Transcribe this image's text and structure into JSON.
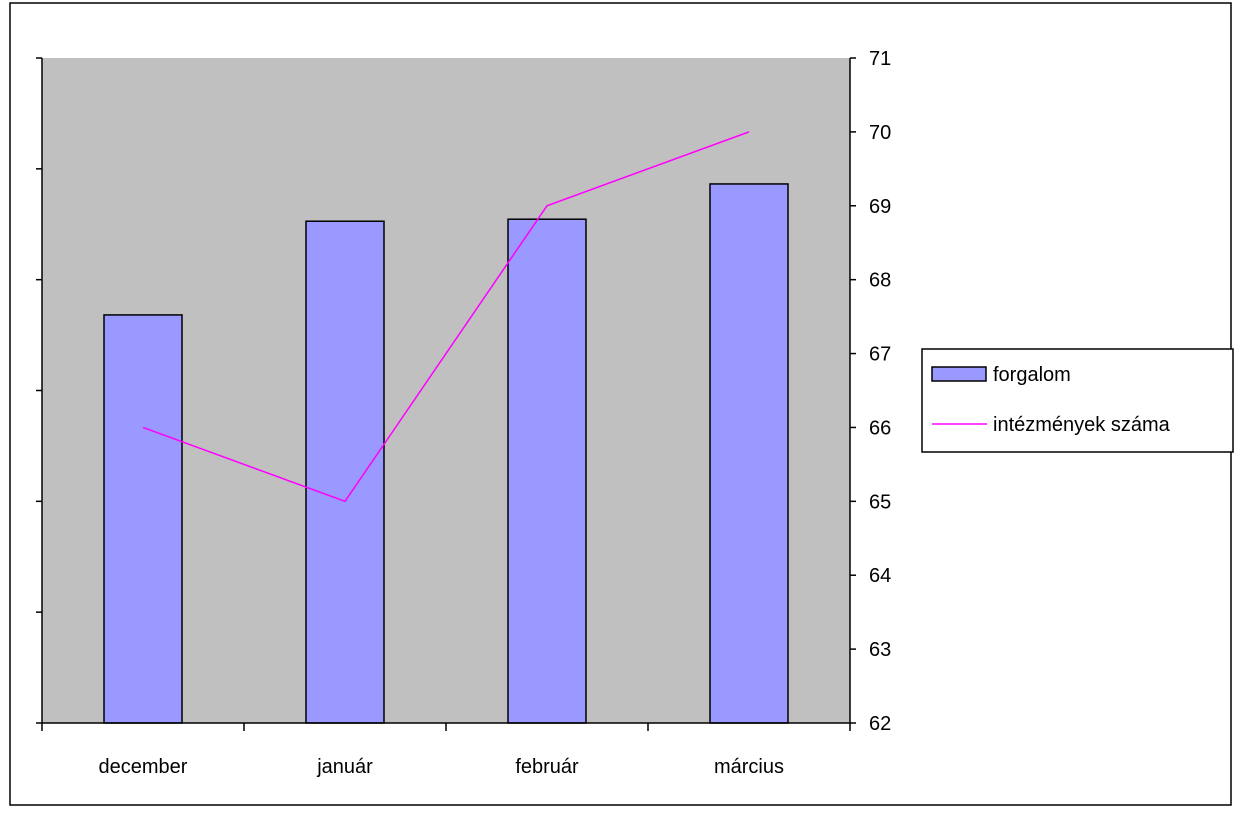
{
  "chart_data": {
    "type": "bar+line",
    "categories": [
      "december",
      "január",
      "február",
      "március"
    ],
    "series": [
      {
        "name": "forgalom",
        "type": "bar",
        "axis": "left",
        "values": [
          4.05,
          4.98,
          5.0,
          5.35
        ],
        "color": "#9999ff"
      },
      {
        "name": "intézmények száma",
        "type": "line",
        "axis": "right",
        "values": [
          66,
          65,
          69,
          70
        ],
        "color": "#ff00ff"
      }
    ],
    "left_axis": {
      "ylim": [
        0,
        6.6
      ],
      "tick_count": 7,
      "tick_labels_shown": false
    },
    "right_axis": {
      "ylim": [
        62,
        71
      ],
      "ticks": [
        "62",
        "63",
        "64",
        "65",
        "66",
        "67",
        "68",
        "69",
        "70",
        "71"
      ]
    },
    "plot_background": "#c0c0c0",
    "grid": false,
    "legend_position": "right"
  }
}
